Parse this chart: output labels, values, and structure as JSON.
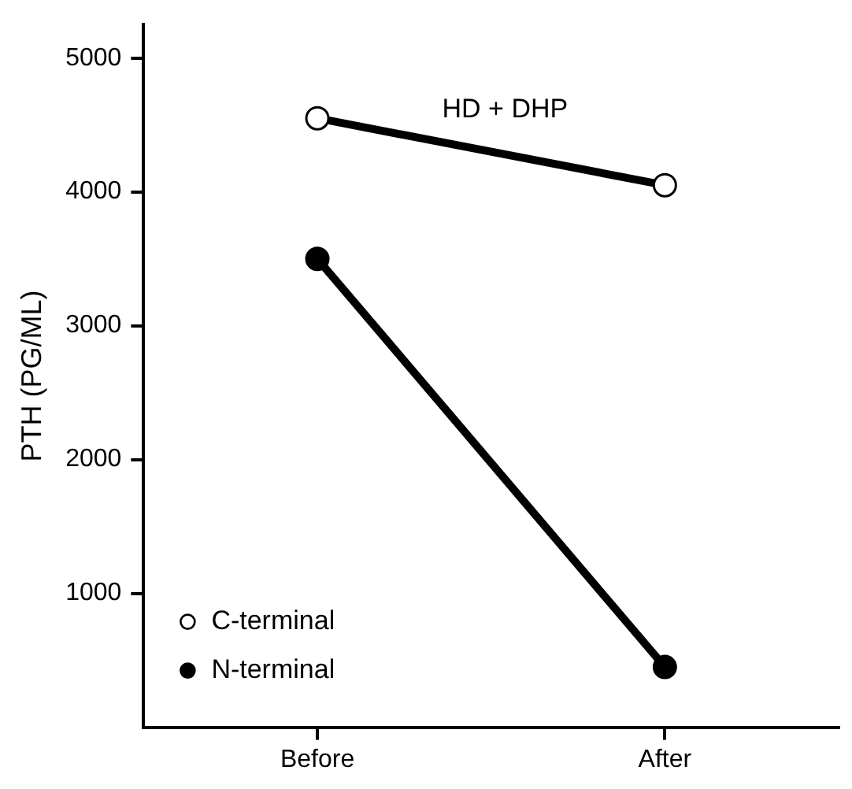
{
  "chart_data": {
    "type": "line",
    "ylabel": "PTH (PG/ML)",
    "categories": [
      "Before",
      "After"
    ],
    "series": [
      {
        "name": "C-terminal",
        "color": "#000000",
        "values": [
          4550,
          4050
        ]
      },
      {
        "name": "N-terminal",
        "color": "#000000",
        "values": [
          3500,
          450
        ]
      }
    ],
    "ylim": [
      0,
      5250
    ],
    "yticks": [
      1000,
      2000,
      3000,
      4000,
      5000
    ],
    "grid": false,
    "legend": "bottom left",
    "marker": "circle",
    "line_style": "solid",
    "annotations": [
      "HD + DHP"
    ]
  }
}
